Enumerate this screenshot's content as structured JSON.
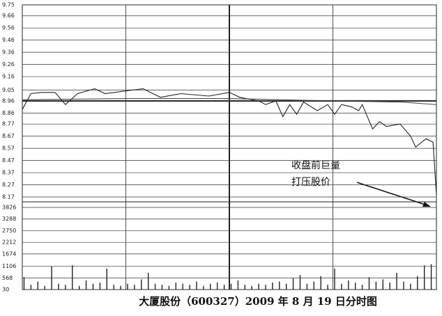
{
  "chart_data": [
    {
      "type": "line",
      "title": "大厦股份（600327）2009 年 8 月 19 日分时图",
      "annotations": [
        "收盘前巨量",
        "打压股价"
      ],
      "xlim": [
        0,
        240
      ],
      "ylim": [
        8.17,
        9.75
      ],
      "yticks": [
        9.75,
        9.66,
        9.56,
        9.46,
        9.36,
        9.26,
        9.16,
        9.05,
        8.96,
        8.86,
        8.77,
        8.67,
        8.57,
        8.47,
        8.37,
        8.27,
        8.17
      ],
      "grid": true,
      "series": [
        {
          "color": "#222222",
          "x": [
            0,
            5,
            11,
            19,
            25,
            32,
            42,
            48,
            64,
            70,
            80,
            92,
            108,
            120,
            126,
            137,
            141,
            147,
            151,
            155,
            159,
            163,
            171,
            177,
            181,
            185,
            191,
            195,
            197,
            203,
            207,
            211,
            219,
            225,
            228,
            234,
            238,
            240
          ],
          "values": [
            8.89,
            9.02,
            9.03,
            9.03,
            8.93,
            9.02,
            9.06,
            9.02,
            9.05,
            9.06,
            8.99,
            9.02,
            9.0,
            9.03,
            8.99,
            8.96,
            8.93,
            8.96,
            8.83,
            8.93,
            8.85,
            8.95,
            8.88,
            8.93,
            8.85,
            8.93,
            8.91,
            8.88,
            8.93,
            8.73,
            8.79,
            8.75,
            8.77,
            8.67,
            8.58,
            8.65,
            8.62,
            8.19
          ]
        },
        {
          "color": "#444444",
          "x": [
            0,
            60,
            120,
            180,
            220,
            240
          ],
          "values": [
            8.97,
            8.98,
            8.98,
            8.96,
            8.95,
            8.93
          ]
        }
      ]
    },
    {
      "type": "bar",
      "xlim": [
        0,
        240
      ],
      "ylim": [
        30,
        3826
      ],
      "yticks": [
        3826,
        3288,
        2750,
        2212,
        1674,
        1106,
        568,
        30
      ],
      "color": "#222222",
      "x": [
        1,
        5,
        9,
        13,
        17,
        21,
        25,
        29,
        33,
        37,
        41,
        45,
        49,
        53,
        57,
        61,
        65,
        69,
        73,
        77,
        81,
        85,
        89,
        93,
        97,
        101,
        105,
        109,
        113,
        117,
        121,
        125,
        129,
        133,
        137,
        141,
        145,
        149,
        153,
        157,
        161,
        165,
        169,
        173,
        177,
        181,
        185,
        189,
        193,
        197,
        201,
        205,
        209,
        213,
        217,
        221,
        225,
        229,
        233,
        237
      ],
      "values": [
        600,
        250,
        400,
        200,
        1100,
        300,
        250,
        1150,
        200,
        450,
        300,
        350,
        1000,
        250,
        200,
        300,
        250,
        500,
        800,
        300,
        250,
        200,
        350,
        300,
        250,
        400,
        200,
        300,
        350,
        250,
        300,
        450,
        250,
        200,
        300,
        250,
        350,
        400,
        300,
        550,
        700,
        300,
        400,
        650,
        250,
        1000,
        300,
        450,
        350,
        250,
        600,
        400,
        500,
        350,
        800,
        400,
        300,
        650,
        1150,
        1200
      ]
    }
  ]
}
